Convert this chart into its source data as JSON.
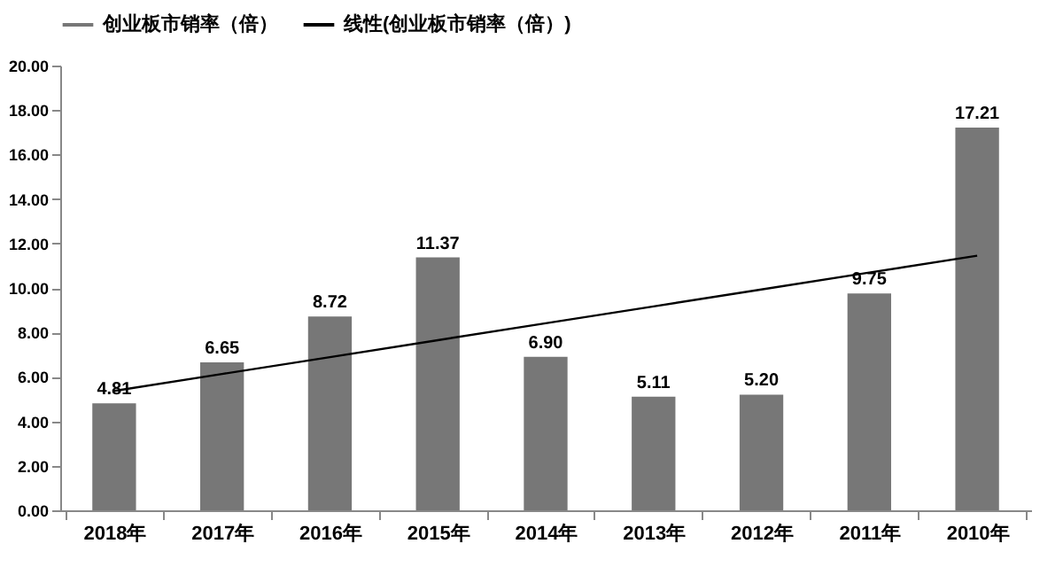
{
  "chart_data": {
    "type": "bar",
    "categories": [
      "2018年",
      "2017年",
      "2016年",
      "2015年",
      "2014年",
      "2013年",
      "2012年",
      "2011年",
      "2010年"
    ],
    "series": [
      {
        "name": "创业板市销率（倍）",
        "color": "#777777",
        "values": [
          4.81,
          6.65,
          8.72,
          11.37,
          6.9,
          5.11,
          5.2,
          9.75,
          17.21
        ],
        "value_labels": [
          "4.81",
          "6.65",
          "8.72",
          "11.37",
          "6.90",
          "5.11",
          "5.20",
          "9.75",
          "17.21"
        ]
      },
      {
        "name": "线性(创业板市销率（倍）)",
        "type": "line",
        "color": "#000000",
        "values": [
          5.37,
          6.13,
          6.89,
          7.65,
          8.41,
          9.17,
          9.93,
          10.69,
          11.45
        ]
      }
    ],
    "ylim": [
      0,
      20
    ],
    "yticks": [
      {
        "value": 0,
        "label": "0.00"
      },
      {
        "value": 2,
        "label": "2.00"
      },
      {
        "value": 4,
        "label": "4.00"
      },
      {
        "value": 6,
        "label": "6.00"
      },
      {
        "value": 8,
        "label": "8.00"
      },
      {
        "value": 10,
        "label": "10.00"
      },
      {
        "value": 12,
        "label": "12.00"
      },
      {
        "value": 14,
        "label": "14.00"
      },
      {
        "value": 16,
        "label": "16.00"
      },
      {
        "value": 18,
        "label": "18.00"
      },
      {
        "value": 20,
        "label": "20.00"
      }
    ],
    "grid": false,
    "legend": "top",
    "marker": "none",
    "line_style": "solid"
  }
}
